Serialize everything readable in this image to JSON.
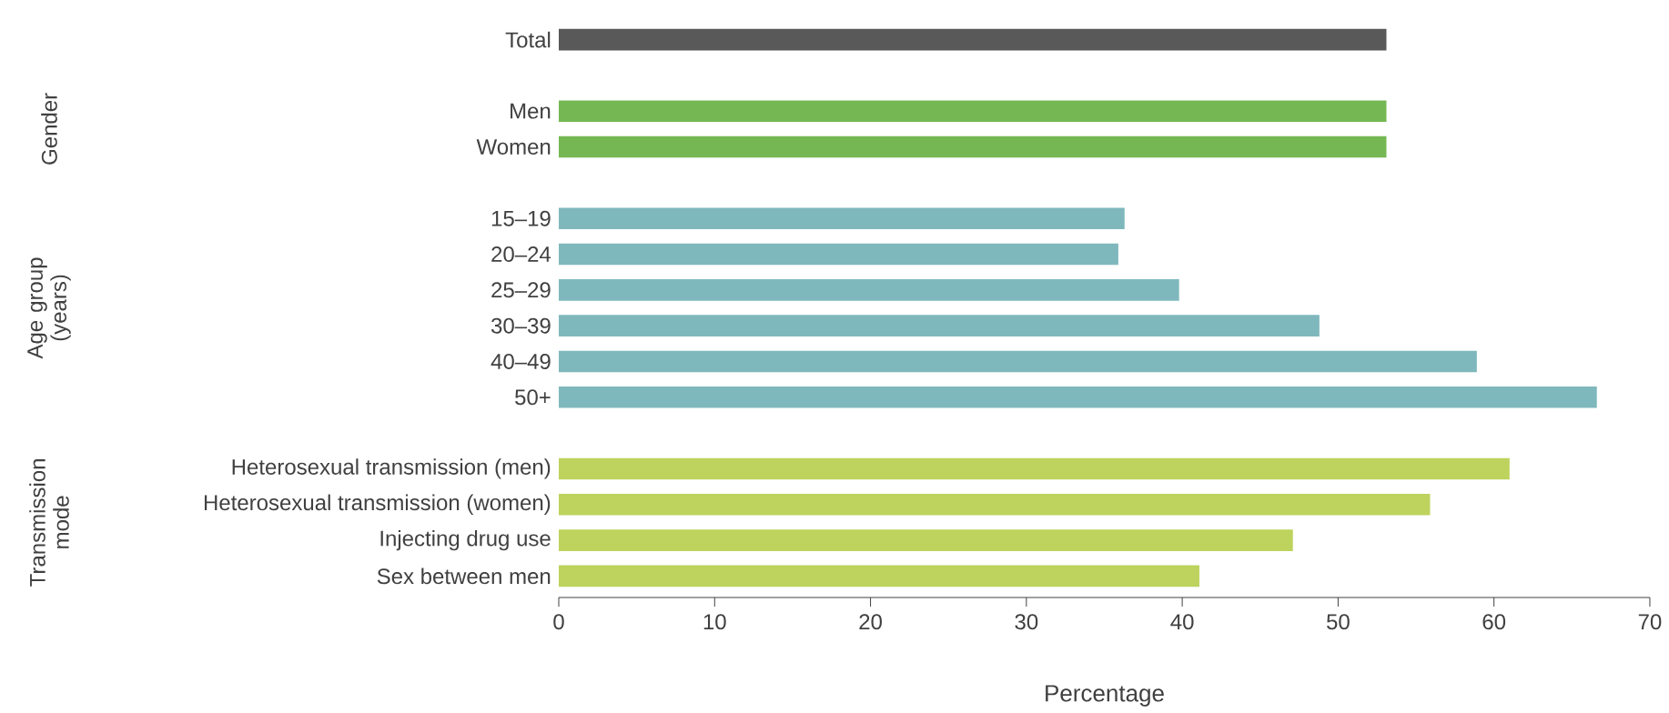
{
  "chart_data": {
    "type": "bar",
    "orientation": "horizontal",
    "xlabel": "Percentage",
    "categories": [
      "Total",
      null,
      "Men",
      "Women",
      null,
      "15–19",
      "20–24",
      "25–29",
      "30–39",
      "40–49",
      "50+",
      null,
      "Heterosexual transmission (men)",
      "Heterosexual transmission (women)",
      "Injecting drug use",
      "Sex between men"
    ],
    "values": [
      53.1,
      null,
      53.1,
      53.1,
      null,
      36.3,
      35.9,
      39.8,
      48.8,
      58.9,
      66.6,
      null,
      61.0,
      55.9,
      47.1,
      41.1
    ],
    "colors": [
      "#595959",
      null,
      "#75b853",
      "#75b853",
      null,
      "#7fb8bc",
      "#7fb8bc",
      "#7fb8bc",
      "#7fb8bc",
      "#7fb8bc",
      "#7fb8bc",
      null,
      "#bdd35e",
      "#bdd35e",
      "#bdd35e",
      "#bdd35e"
    ],
    "xlim": [
      0,
      70
    ],
    "xticks": [
      0,
      10,
      20,
      30,
      40,
      50,
      60,
      70
    ],
    "annotations": [
      "Gender",
      "Age group (years)",
      "Transmission mode"
    ]
  }
}
